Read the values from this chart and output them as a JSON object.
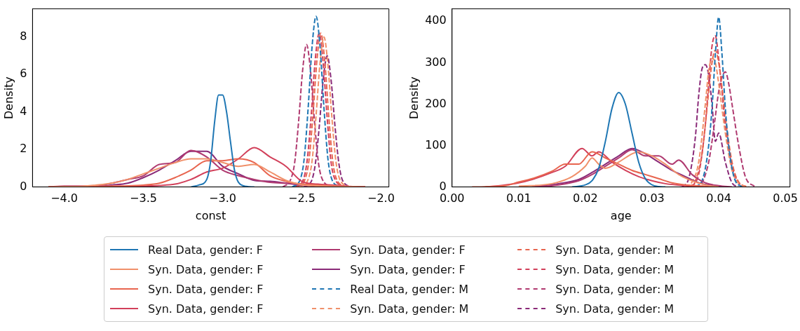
{
  "chart_data": [
    {
      "type": "line",
      "xlabel": "const",
      "ylabel": "Density",
      "xlim": [
        -4.2,
        -1.95
      ],
      "ylim": [
        0,
        9.5
      ],
      "xticks": [
        {
          "value": -4,
          "label": "−4.0"
        },
        {
          "value": -3.5,
          "label": "−3.5"
        },
        {
          "value": -3,
          "label": "−3.0"
        },
        {
          "value": -2.5,
          "label": "−2.5"
        },
        {
          "value": -2,
          "label": "−2.0"
        }
      ],
      "yticks": [
        0,
        2,
        4,
        6,
        8
      ],
      "grid": false,
      "legend": "bottom",
      "x": [
        -4.1,
        -4.0,
        -3.9,
        -3.8,
        -3.7,
        -3.6,
        -3.5,
        -3.4,
        -3.3,
        -3.2,
        -3.1,
        -3.0,
        -2.9,
        -2.8,
        -2.7,
        -2.6,
        -2.5,
        -2.4,
        -2.3,
        -2.2,
        -2.1
      ],
      "series": [
        {
          "name": "Real Data, gender: F",
          "color": "#1f77b4",
          "line_style": "solid",
          "x": [
            -3.2,
            -3.15,
            -3.1,
            -3.075,
            -3.05,
            -3.025,
            -3.0,
            -2.975,
            -2.95,
            -2.925,
            -2.9,
            -2.85,
            -2.8
          ],
          "values": [
            0,
            0.1,
            0.4,
            1.4,
            3.5,
            4.9,
            4.9,
            4.0,
            2.4,
            0.9,
            0.25,
            0.03,
            0
          ]
        },
        {
          "name": "Syn. Data, gender: F",
          "color": "#f0906a",
          "line_style": "solid",
          "values": [
            0,
            0.02,
            0.03,
            0.1,
            0.2,
            0.4,
            0.7,
            1.0,
            1.3,
            1.5,
            1.5,
            1.3,
            1.1,
            1.2,
            0.8,
            0.35,
            0.12,
            0.06,
            0.03,
            0.01,
            0
          ]
        },
        {
          "name": "Syn. Data, gender: F",
          "color": "#e8654f",
          "line_style": "solid",
          "values": [
            0,
            0,
            0,
            0.02,
            0.05,
            0.06,
            0.1,
            0.2,
            0.5,
            0.9,
            1.4,
            1.4,
            1.5,
            1.3,
            0.6,
            0.3,
            0.15,
            0.1,
            0.05,
            0.02,
            0
          ]
        },
        {
          "name": "Syn. Data, gender: F",
          "color": "#d2405a",
          "line_style": "solid",
          "values": [
            0,
            0,
            0,
            0,
            0,
            0.02,
            0.05,
            0.08,
            0.15,
            0.4,
            0.8,
            1.0,
            1.5,
            2.1,
            1.6,
            1.1,
            0.3,
            0.15,
            0.1,
            0.03,
            0
          ]
        },
        {
          "name": "Syn. Data, gender: F",
          "color": "#b03a70",
          "line_style": "solid",
          "values": [
            0,
            0.05,
            0.05,
            0.05,
            0.2,
            0.4,
            0.6,
            1.2,
            1.3,
            1.95,
            1.6,
            0.9,
            0.6,
            0.4,
            0.25,
            0.2,
            0.15,
            0.1,
            0.05,
            0.02,
            0
          ]
        },
        {
          "name": "Syn. Data, gender: F",
          "color": "#8a2a78",
          "line_style": "solid",
          "values": [
            0,
            0.02,
            0.02,
            0.02,
            0.1,
            0.2,
            0.5,
            0.9,
            1.4,
            1.9,
            1.9,
            1.1,
            0.7,
            0.35,
            0.3,
            0.2,
            0.1,
            0.05,
            0.02,
            0,
            0
          ]
        },
        {
          "name": "Real Data, gender: M",
          "color": "#1f77b4",
          "line_style": "dashed",
          "x": [
            -2.56,
            -2.51,
            -2.485,
            -2.46,
            -2.435,
            -2.41,
            -2.385,
            -2.36,
            -2.335,
            -2.31,
            -2.26
          ],
          "values": [
            0,
            0.4,
            1.5,
            4.2,
            7.5,
            9.1,
            7.5,
            4.2,
            1.5,
            0.4,
            0
          ]
        },
        {
          "name": "Syn. Data, gender: M",
          "color": "#f0906a",
          "line_style": "dashed",
          "x": [
            -2.51,
            -2.46,
            -2.435,
            -2.41,
            -2.385,
            -2.36,
            -2.335,
            -2.31,
            -2.285,
            -2.26,
            -2.2
          ],
          "values": [
            0,
            0.4,
            1.4,
            3.8,
            6.6,
            8.0,
            6.5,
            3.7,
            1.4,
            0.4,
            0
          ]
        },
        {
          "name": "Syn. Data, gender: M",
          "color": "#e8654f",
          "line_style": "dashed",
          "x": [
            -2.53,
            -2.48,
            -2.455,
            -2.43,
            -2.405,
            -2.38,
            -2.355,
            -2.33,
            -2.305,
            -2.28,
            -2.22
          ],
          "values": [
            0,
            0.4,
            1.4,
            3.8,
            6.7,
            8.2,
            6.7,
            3.8,
            1.4,
            0.4,
            0
          ]
        },
        {
          "name": "Syn. Data, gender: M",
          "color": "#d2405a",
          "line_style": "dashed",
          "x": [
            -2.54,
            -2.49,
            -2.465,
            -2.44,
            -2.415,
            -2.39,
            -2.365,
            -2.34,
            -2.315,
            -2.29,
            -2.23
          ],
          "values": [
            0,
            0.4,
            1.5,
            3.9,
            6.8,
            8.2,
            6.6,
            3.7,
            1.3,
            0.4,
            0
          ]
        },
        {
          "name": "Syn. Data, gender: M",
          "color": "#b03a70",
          "line_style": "dashed",
          "x": [
            -2.62,
            -2.57,
            -2.545,
            -2.52,
            -2.495,
            -2.47,
            -2.445,
            -2.42,
            -2.395,
            -2.37,
            -2.31
          ],
          "values": [
            0,
            0.4,
            1.3,
            3.5,
            6.2,
            7.6,
            6.2,
            3.5,
            1.3,
            0.4,
            0
          ]
        },
        {
          "name": "Syn. Data, gender: M",
          "color": "#8a2a78",
          "line_style": "dashed",
          "x": [
            -2.49,
            -2.44,
            -2.415,
            -2.39,
            -2.365,
            -2.34,
            -2.315,
            -2.29,
            -2.265,
            -2.24,
            -2.18
          ],
          "values": [
            0,
            0.3,
            1.2,
            3.2,
            5.7,
            7.0,
            5.7,
            3.2,
            1.2,
            0.3,
            0
          ]
        }
      ]
    },
    {
      "type": "line",
      "xlabel": "age",
      "ylabel": "Density",
      "xlim": [
        0,
        0.0507
      ],
      "ylim": [
        0,
        430
      ],
      "xticks": [
        {
          "value": 0,
          "label": "0.00"
        },
        {
          "value": 0.01,
          "label": "0.01"
        },
        {
          "value": 0.02,
          "label": "0.02"
        },
        {
          "value": 0.03,
          "label": "0.03"
        },
        {
          "value": 0.04,
          "label": "0.04"
        },
        {
          "value": 0.05,
          "label": "0.05"
        }
      ],
      "yticks": [
        0,
        100,
        200,
        300,
        400
      ],
      "grid": false,
      "series": [
        {
          "color": "#1f77b4",
          "line_style": "solid",
          "x": [
            0.018,
            0.02,
            0.021,
            0.022,
            0.023,
            0.024,
            0.025,
            0.026,
            0.027,
            0.028,
            0.029,
            0.03,
            0.031,
            0.032
          ],
          "values": [
            0,
            5,
            15,
            45,
            110,
            190,
            228,
            200,
            130,
            60,
            20,
            5,
            1,
            0
          ]
        },
        {
          "color": "#f0906a",
          "line_style": "solid",
          "x": [
            0.01,
            0.015,
            0.018,
            0.02,
            0.021,
            0.022,
            0.023,
            0.025,
            0.027,
            0.028,
            0.03,
            0.032,
            0.034,
            0.036,
            0.038,
            0.04
          ],
          "values": [
            2,
            8,
            25,
            50,
            70,
            55,
            45,
            60,
            80,
            85,
            75,
            55,
            30,
            15,
            5,
            0
          ]
        },
        {
          "color": "#e8654f",
          "line_style": "solid",
          "x": [
            0.003,
            0.008,
            0.01,
            0.012,
            0.015,
            0.017,
            0.019,
            0.021,
            0.023,
            0.025,
            0.027,
            0.029,
            0.031,
            0.033,
            0.035,
            0.038,
            0.04
          ],
          "values": [
            0,
            3,
            12,
            20,
            38,
            55,
            55,
            85,
            70,
            55,
            40,
            30,
            20,
            10,
            5,
            2,
            0
          ]
        },
        {
          "color": "#d2405a",
          "line_style": "solid",
          "x": [
            0.005,
            0.008,
            0.01,
            0.012,
            0.015,
            0.017,
            0.0195,
            0.021,
            0.022,
            0.024,
            0.026,
            0.028,
            0.03,
            0.032,
            0.035,
            0.038
          ],
          "values": [
            0,
            5,
            10,
            18,
            35,
            50,
            93,
            75,
            85,
            60,
            40,
            25,
            15,
            8,
            3,
            0
          ]
        },
        {
          "color": "#b03a70",
          "line_style": "solid",
          "x": [
            0.012,
            0.016,
            0.019,
            0.021,
            0.023,
            0.025,
            0.027,
            0.029,
            0.031,
            0.033,
            0.034,
            0.036,
            0.038,
            0.04,
            0.042
          ],
          "values": [
            0,
            5,
            15,
            30,
            50,
            70,
            90,
            75,
            75,
            55,
            65,
            30,
            10,
            3,
            0
          ]
        },
        {
          "color": "#8a2a78",
          "line_style": "solid",
          "x": [
            0.012,
            0.016,
            0.019,
            0.021,
            0.023,
            0.025,
            0.027,
            0.029,
            0.031,
            0.033,
            0.035,
            0.037,
            0.039,
            0.041
          ],
          "values": [
            0,
            8,
            18,
            35,
            55,
            75,
            93,
            80,
            60,
            40,
            25,
            10,
            3,
            0
          ]
        },
        {
          "color": "#1f77b4",
          "line_style": "dashed",
          "x": [
            0.0365,
            0.0375,
            0.038,
            0.0385,
            0.039,
            0.0395,
            0.04,
            0.0405,
            0.041,
            0.0415,
            0.042,
            0.0425,
            0.0435
          ],
          "values": [
            0,
            15,
            45,
            100,
            190,
            320,
            410,
            320,
            190,
            100,
            45,
            15,
            0
          ]
        },
        {
          "color": "#f0906a",
          "line_style": "dashed",
          "x": [
            0.035,
            0.036,
            0.037,
            0.038,
            0.0385,
            0.039,
            0.0395,
            0.04,
            0.041,
            0.042,
            0.043,
            0.044
          ],
          "values": [
            0,
            12,
            60,
            200,
            280,
            310,
            300,
            250,
            130,
            40,
            8,
            0
          ]
        },
        {
          "color": "#e8654f",
          "line_style": "dashed",
          "x": [
            0.0355,
            0.0365,
            0.0375,
            0.038,
            0.0385,
            0.039,
            0.0395,
            0.04,
            0.0405,
            0.041,
            0.042,
            0.043,
            0.0445
          ],
          "values": [
            0,
            15,
            80,
            150,
            230,
            300,
            330,
            300,
            240,
            170,
            60,
            12,
            0
          ]
        },
        {
          "color": "#d2405a",
          "line_style": "dashed",
          "x": [
            0.036,
            0.037,
            0.0375,
            0.038,
            0.0385,
            0.039,
            0.0395,
            0.04,
            0.0405,
            0.041,
            0.042,
            0.043,
            0.044
          ],
          "values": [
            0,
            30,
            80,
            150,
            250,
            340,
            365,
            310,
            230,
            150,
            50,
            10,
            0
          ]
        },
        {
          "color": "#b03a70",
          "line_style": "dashed",
          "x": [
            0.0365,
            0.0375,
            0.0385,
            0.039,
            0.0395,
            0.04,
            0.0405,
            0.041,
            0.0415,
            0.042,
            0.043,
            0.044,
            0.0455
          ],
          "values": [
            0,
            10,
            60,
            110,
            170,
            230,
            265,
            278,
            250,
            200,
            100,
            25,
            0
          ]
        },
        {
          "color": "#8a2a78",
          "line_style": "dashed",
          "x": [
            0.0345,
            0.0355,
            0.0365,
            0.037,
            0.0375,
            0.038,
            0.0385,
            0.039,
            0.0395,
            0.04,
            0.041,
            0.042,
            0.043
          ],
          "values": [
            0,
            20,
            120,
            220,
            285,
            295,
            270,
            200,
            110,
            130,
            60,
            10,
            0
          ]
        }
      ]
    }
  ]
}
